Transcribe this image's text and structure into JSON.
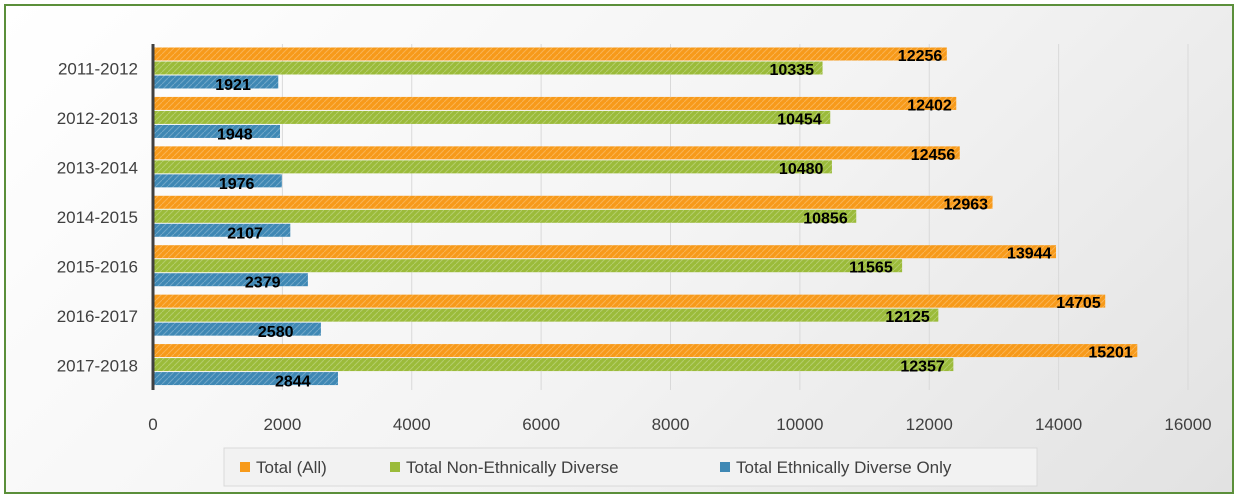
{
  "chart_data": {
    "type": "bar",
    "orientation": "horizontal",
    "categories": [
      "2011-2012",
      "2012-2013",
      "2013-2014",
      "2014-2015",
      "2015-2016",
      "2016-2017",
      "2017-2018"
    ],
    "series": [
      {
        "name": "Total (All)",
        "color": "#f79a1a",
        "values": [
          12256,
          12402,
          12456,
          12963,
          13944,
          14705,
          15201
        ]
      },
      {
        "name": "Total Non-Ethnically Diverse",
        "color": "#9bbb3a",
        "values": [
          10335,
          10454,
          10480,
          10856,
          11565,
          12125,
          12357
        ]
      },
      {
        "name": "Total Ethnically Diverse Only",
        "color": "#3f88b4",
        "values": [
          1921,
          1948,
          1976,
          2107,
          2379,
          2580,
          2844
        ]
      }
    ],
    "x_ticks": [
      "0",
      "2000",
      "4000",
      "6000",
      "8000",
      "10000",
      "12000",
      "14000",
      "16000"
    ],
    "xlim": [
      0,
      16000
    ],
    "grid": true,
    "legend_position": "bottom",
    "title": "",
    "xlabel": "",
    "ylabel": ""
  }
}
